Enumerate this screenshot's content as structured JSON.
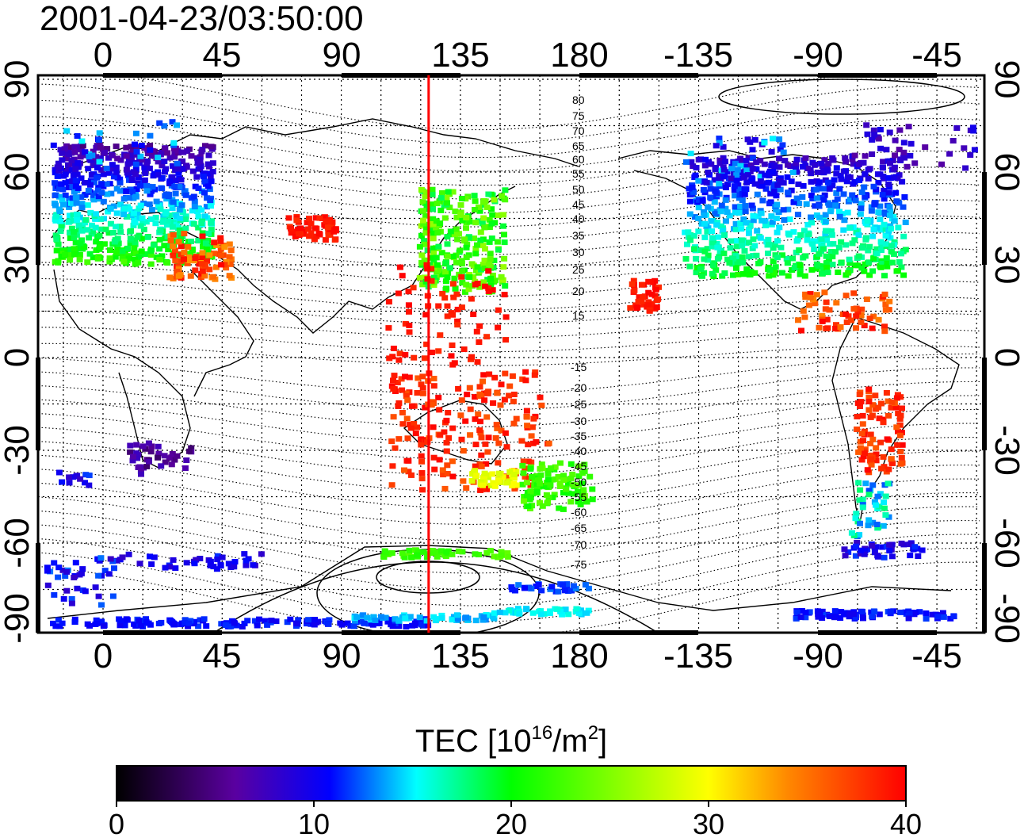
{
  "title": "2001-04-23/03:50:00",
  "colorbar": {
    "label_main": "TEC  [10",
    "label_sup1": "16",
    "label_mid": "/m",
    "label_sup2": "2",
    "label_end": "]",
    "ticks": [
      "0",
      "10",
      "20",
      "30",
      "40"
    ],
    "stops": [
      "#000000",
      "#5a00a0",
      "#0000ff",
      "#00ffff",
      "#00ff00",
      "#ffff00",
      "#ff0000"
    ]
  },
  "map": {
    "top_lon_labels": [
      "0",
      "45",
      "90",
      "135",
      "180",
      "-135",
      "-90",
      "-45"
    ],
    "bottom_lon_labels": [
      "0",
      "45",
      "90",
      "135",
      "180",
      "-135",
      "-90",
      "-45"
    ],
    "lat_labels": [
      "90",
      "60",
      "30",
      "0",
      "-30",
      "-60",
      "-90"
    ],
    "contour_labels_north": [
      "80",
      "75",
      "70",
      "65",
      "60",
      "55",
      "50",
      "45",
      "40",
      "35",
      "30",
      "25",
      "20",
      "15"
    ],
    "contour_labels_south": [
      "-15",
      "-20",
      "-25",
      "-30",
      "-35",
      "-40",
      "-45",
      "-50",
      "-55",
      "-60",
      "-65",
      "-70",
      "-75"
    ],
    "terminator_longitude": 123,
    "marker_color": "#ff0000"
  }
}
